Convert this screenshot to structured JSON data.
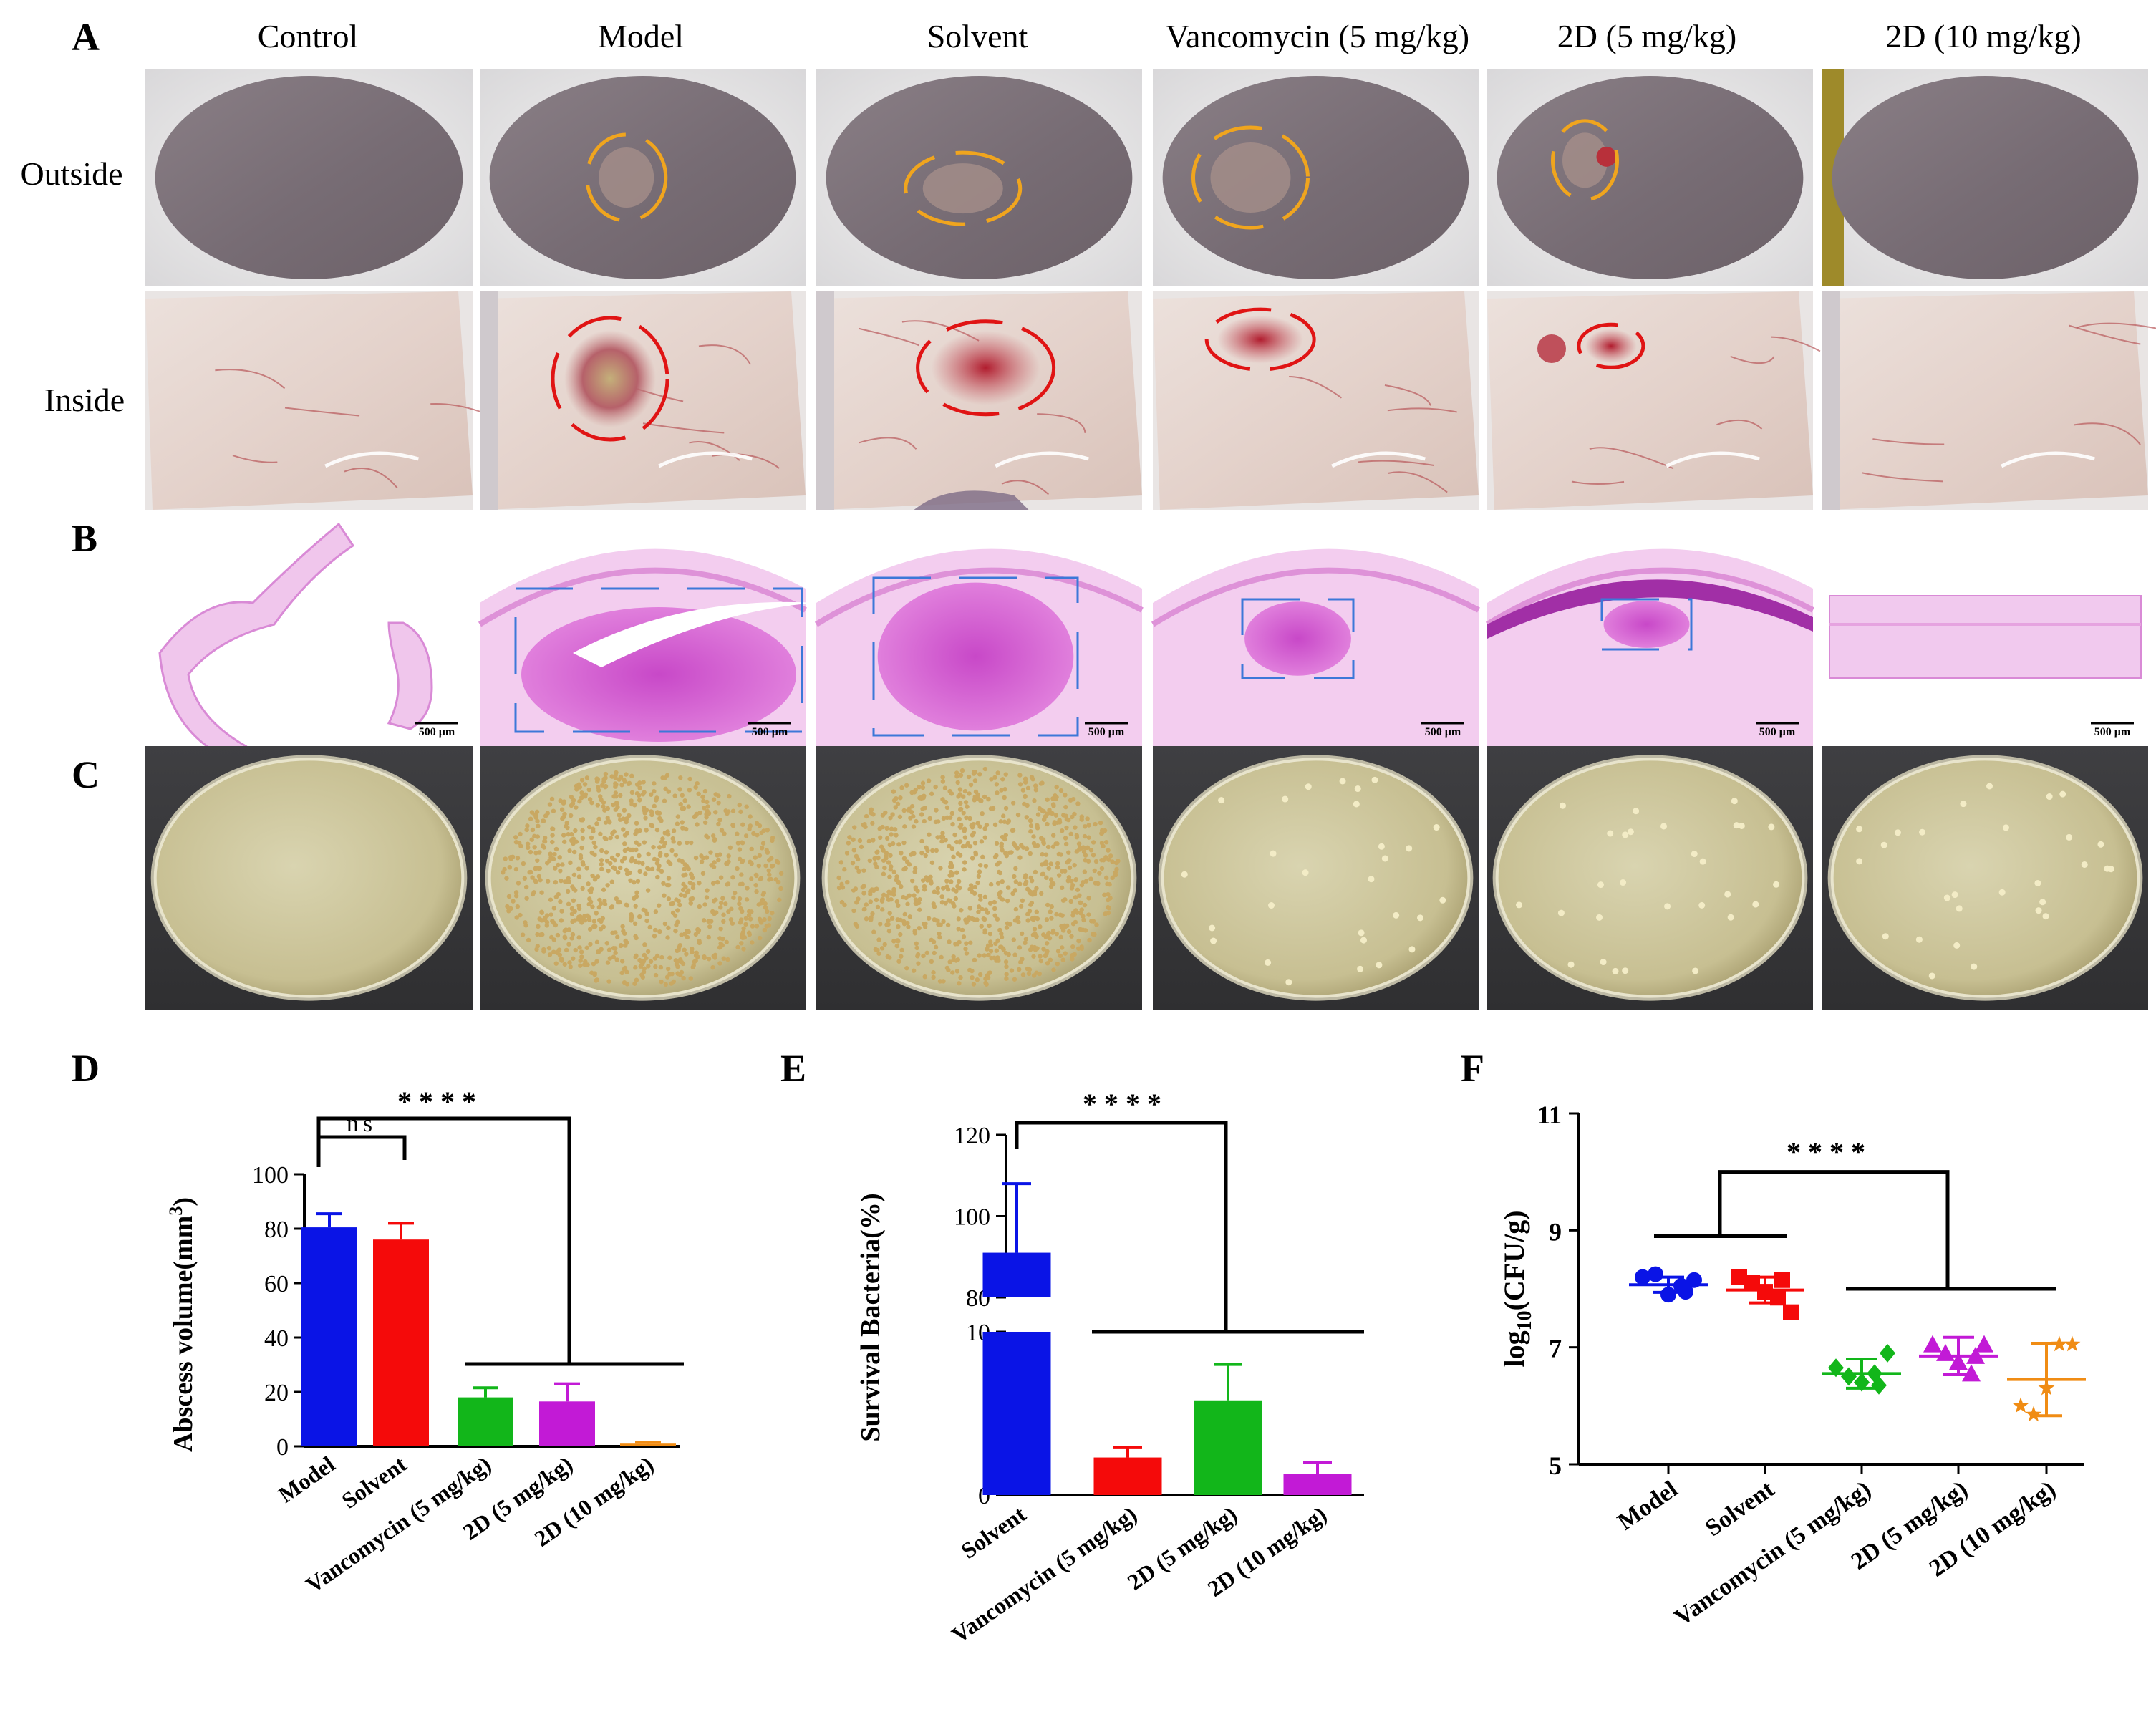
{
  "panel_labels": {
    "A": "A",
    "B": "B",
    "C": "C",
    "D": "D",
    "E": "E",
    "F": "F"
  },
  "group_titles": [
    "Control",
    "Model",
    "Solvent",
    "Vancomycin (5 mg/kg)",
    "2D (5 mg/kg)",
    "2D (10 mg/kg)"
  ],
  "row_labels": {
    "outside": "Outside",
    "inside": "Inside"
  },
  "scale_bar_text": "500 μm",
  "colors": {
    "model": "#0a14e6",
    "solvent": "#f50a0a",
    "vancomycin": "#12b61a",
    "twoD5": "#c21ad6",
    "twoD10": "#f08c14",
    "outside_marker": "#f0a51e",
    "inside_marker": "#e01414",
    "he_box": "#3c78d8"
  },
  "outside_markers": [
    false,
    true,
    true,
    true,
    true,
    false
  ],
  "inside_markers": [
    false,
    true,
    true,
    true,
    true,
    false
  ],
  "he_boxes": [
    false,
    true,
    true,
    true,
    true,
    false
  ],
  "colony_levels": [
    "none",
    "very high",
    "very high",
    "low",
    "low",
    "low"
  ],
  "chart_data": [
    {
      "panel": "D",
      "type": "bar",
      "ylabel": "Abscess volume(mm",
      "ylabel_sup": "3",
      "ylabel_close": ")",
      "ylim": [
        0,
        100
      ],
      "yticks": [
        "0",
        "20",
        "40",
        "60",
        "80",
        "100"
      ],
      "categories": [
        "Model",
        "Solvent",
        "Vancomycin (5 mg/kg)",
        "2D (5 mg/kg)",
        "2D (10 mg/kg)"
      ],
      "values": [
        80.5,
        76,
        18,
        16.5,
        1
      ],
      "errors": [
        5,
        6,
        3.5,
        6.5,
        0.5
      ],
      "significance": [
        {
          "label": "ns",
          "from": 0,
          "to": 1
        },
        {
          "label": "****",
          "from": 0,
          "to": "2-4"
        }
      ]
    },
    {
      "panel": "E",
      "type": "bar",
      "ylabel": "Survival Bacteria(%)",
      "broken_axis": {
        "lower": [
          0,
          10
        ],
        "upper": [
          80,
          120
        ]
      },
      "yticks_lower": [
        "0",
        "10"
      ],
      "yticks_upper": [
        "80",
        "100",
        "120"
      ],
      "categories": [
        "Solvent",
        "Vancomycin (5 mg/kg)",
        "2D (5 mg/kg)",
        "2D (10 mg/kg)"
      ],
      "values": [
        91,
        2.3,
        5.8,
        1.3
      ],
      "errors": [
        17,
        0.6,
        2.2,
        0.7
      ],
      "significance": [
        {
          "label": "****",
          "from": 0,
          "to": "1-3"
        }
      ]
    },
    {
      "panel": "F",
      "type": "scatter",
      "ylabel_prefix": "log",
      "ylabel_sub": "10",
      "ylabel_suffix": "(CFU/g)",
      "ylim": [
        5,
        11
      ],
      "yticks": [
        "5",
        "7",
        "9",
        "11"
      ],
      "categories": [
        "Model",
        "Solvent",
        "Vancomycin (5 mg/kg)",
        "2D (5 mg/kg)",
        "2D (10 mg/kg)"
      ],
      "markers": [
        "circle",
        "square",
        "diamond",
        "triangle",
        "star"
      ],
      "points": [
        [
          8.2,
          8.25,
          7.9,
          8.05,
          8.15,
          7.95
        ],
        [
          8.2,
          8.1,
          7.95,
          7.85,
          7.6,
          8.15
        ],
        [
          6.65,
          6.5,
          6.4,
          6.55,
          6.9,
          6.35
        ],
        [
          7.05,
          6.9,
          6.75,
          6.55,
          7.05,
          6.85
        ],
        [
          6.0,
          5.85,
          6.3,
          7.05,
          7.05
        ]
      ],
      "means": [
        8.07,
        7.98,
        6.55,
        6.85,
        6.45
      ],
      "sds": [
        0.13,
        0.22,
        0.25,
        0.32,
        0.62
      ],
      "significance": [
        {
          "label": "****",
          "from": "0-1",
          "to": "2-4"
        }
      ]
    }
  ]
}
